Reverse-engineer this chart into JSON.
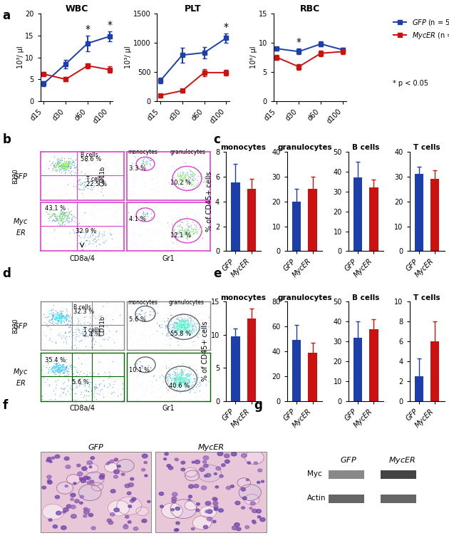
{
  "panel_a": {
    "wbc": {
      "title": "WBC",
      "ylabel": "10³/ μl",
      "ylim": [
        0,
        20
      ],
      "yticks": [
        0,
        5,
        10,
        15,
        20
      ],
      "xticks": [
        "d15",
        "d30",
        "d60",
        "d100"
      ],
      "gfp_mean": [
        4.0,
        8.5,
        13.2,
        14.8
      ],
      "gfp_err": [
        0.5,
        1.0,
        1.8,
        1.2
      ],
      "mycer_mean": [
        6.2,
        5.0,
        8.1,
        7.2
      ],
      "mycer_err": [
        0.4,
        0.5,
        0.6,
        0.7
      ],
      "stars": [
        false,
        false,
        true,
        true
      ]
    },
    "plt": {
      "title": "PLT",
      "ylabel": "10³/ μl",
      "ylim": [
        0,
        1500
      ],
      "yticks": [
        0,
        500,
        1000,
        1500
      ],
      "xticks": [
        "d15",
        "d30",
        "d60",
        "d100"
      ],
      "gfp_mean": [
        350,
        790,
        830,
        1080
      ],
      "gfp_err": [
        50,
        130,
        100,
        80
      ],
      "mycer_mean": [
        100,
        180,
        490,
        490
      ],
      "mycer_err": [
        20,
        30,
        60,
        50
      ],
      "stars": [
        false,
        false,
        false,
        true
      ]
    },
    "rbc": {
      "title": "RBC",
      "ylabel": "10⁶/ μl",
      "ylim": [
        0,
        15
      ],
      "yticks": [
        0,
        5,
        10,
        15
      ],
      "xticks": [
        "d15",
        "d30",
        "d60",
        "d100"
      ],
      "gfp_mean": [
        9.0,
        8.5,
        9.8,
        8.8
      ],
      "gfp_err": [
        0.3,
        0.5,
        0.4,
        0.3
      ],
      "mycer_mean": [
        7.5,
        5.9,
        8.2,
        8.5
      ],
      "mycer_err": [
        0.4,
        0.5,
        0.5,
        0.4
      ],
      "stars": [
        false,
        true,
        false,
        false
      ]
    }
  },
  "panel_c": {
    "groups": [
      "monocytes",
      "granulocytes",
      "B cells",
      "T cells"
    ],
    "ylims": [
      8,
      40,
      50,
      40
    ],
    "yticks_list": [
      [
        0,
        2,
        4,
        6,
        8
      ],
      [
        0,
        10,
        20,
        30,
        40
      ],
      [
        0,
        10,
        20,
        30,
        40,
        50
      ],
      [
        0,
        10,
        20,
        30,
        40
      ]
    ],
    "gfp_mean": [
      5.5,
      20.0,
      37.0,
      31.0
    ],
    "gfp_err": [
      1.5,
      5.0,
      8.0,
      3.0
    ],
    "mycer_mean": [
      5.0,
      25.0,
      32.0,
      29.0
    ],
    "mycer_err": [
      0.8,
      5.0,
      4.0,
      3.5
    ],
    "ylabel": "% of CD45+ cells"
  },
  "panel_e": {
    "groups": [
      "monocytes",
      "granulocytes",
      "B cells",
      "T cells"
    ],
    "ylims": [
      15,
      80,
      50,
      10
    ],
    "yticks_list": [
      [
        0,
        5,
        10,
        15
      ],
      [
        0,
        20,
        40,
        60,
        80
      ],
      [
        0,
        10,
        20,
        30,
        40,
        50
      ],
      [
        0,
        2,
        4,
        6,
        8,
        10
      ]
    ],
    "gfp_mean": [
      9.8,
      49.0,
      32.0,
      2.5
    ],
    "gfp_err": [
      1.2,
      12.0,
      8.0,
      1.8
    ],
    "mycer_mean": [
      12.5,
      39.0,
      36.0,
      6.0
    ],
    "mycer_err": [
      1.5,
      8.0,
      5.0,
      2.0
    ],
    "ylabel": "% of CD45+ cells"
  },
  "colors": {
    "blue": "#1c3faa",
    "red": "#cc1111",
    "bar_blue": "#1c3faa",
    "bar_red": "#cc1111",
    "flow_b_border": "#dd44cc",
    "flow_d_border": "#888888",
    "flow_d_lower_border": "#006600"
  },
  "flow_b": {
    "gfp_left": {
      "bcells_pct": "58.6 %",
      "tcells_pct": "22.5 %"
    },
    "gfp_right": {
      "mono_pct": "3.3 %",
      "gran_pct": "10.2 %"
    },
    "mycer_left": {
      "top_pct": "43.1 %",
      "bot_pct": "32.9 %"
    },
    "mycer_right": {
      "mono_pct": "4.1 %",
      "gran_pct": "12.1 %"
    }
  },
  "flow_d": {
    "gfp_left": {
      "bcells_pct": "32.3 %",
      "tcells_pct": "2.4 %"
    },
    "gfp_right": {
      "mono_pct": "5.6 %",
      "gran_pct": "55.8 %"
    },
    "mycer_left": {
      "top_pct": "35.4 %",
      "bot_pct": "5.6 %"
    },
    "mycer_right": {
      "mono_pct": "10.1 %",
      "gran_pct": "40.6 %"
    }
  }
}
